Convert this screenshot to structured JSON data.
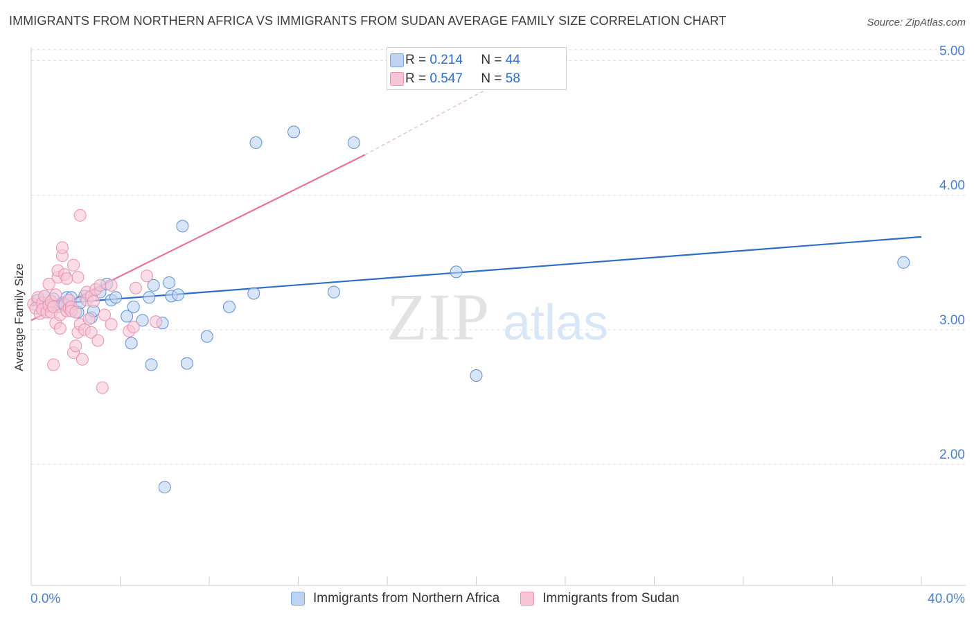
{
  "title": "IMMIGRANTS FROM NORTHERN AFRICA VS IMMIGRANTS FROM SUDAN AVERAGE FAMILY SIZE CORRELATION CHART",
  "source": "Source: ZipAtlas.com",
  "watermark": {
    "part1": "ZIP",
    "part2": "atlas"
  },
  "stats": [
    {
      "r_label": "R =",
      "r_value": "0.214",
      "n_label": "N =",
      "n_value": "44",
      "color": "#bcd3f2"
    },
    {
      "r_label": "R =",
      "r_value": "0.547",
      "n_label": "N =",
      "n_value": "58",
      "color": "#f7c6d6"
    }
  ],
  "legend": [
    {
      "label": "Immigrants from Northern Africa",
      "color": "#bcd3f2"
    },
    {
      "label": "Immigrants from Sudan",
      "color": "#f7c6d6"
    }
  ],
  "chart_data": {
    "type": "scatter",
    "title": "IMMIGRANTS FROM NORTHERN AFRICA VS IMMIGRANTS FROM SUDAN AVERAGE FAMILY SIZE CORRELATION CHART",
    "xlabel": "",
    "ylabel": "Average Family Size",
    "xlim": [
      0,
      40
    ],
    "ylim": [
      1.1,
      5.1
    ],
    "x_tick_labels": [
      "0.0%",
      "40.0%"
    ],
    "y_ticks": [
      2.0,
      3.0,
      4.0,
      5.0
    ],
    "y_tick_labels": [
      "2.00",
      "3.00",
      "4.00",
      "5.00"
    ],
    "series": [
      {
        "name": "Immigrants from Northern Africa",
        "color": "#5b8fd6",
        "fill": "#bcd3f2",
        "trend": {
          "x": [
            0,
            40
          ],
          "y": [
            3.18,
            3.69
          ],
          "color": "#2e6dc8"
        },
        "points": [
          [
            0.3,
            3.22
          ],
          [
            0.5,
            3.18
          ],
          [
            0.6,
            3.25
          ],
          [
            0.8,
            3.19
          ],
          [
            1.0,
            3.23
          ],
          [
            1.2,
            3.17
          ],
          [
            1.4,
            3.2
          ],
          [
            1.5,
            3.18
          ],
          [
            1.6,
            3.24
          ],
          [
            1.8,
            3.24
          ],
          [
            2.1,
            3.13
          ],
          [
            2.4,
            3.25
          ],
          [
            2.7,
            3.09
          ],
          [
            2.8,
            3.14
          ],
          [
            3.1,
            3.28
          ],
          [
            3.4,
            3.34
          ],
          [
            3.6,
            3.22
          ],
          [
            3.8,
            3.24
          ],
          [
            4.3,
            3.1
          ],
          [
            4.5,
            2.9
          ],
          [
            4.6,
            3.17
          ],
          [
            5.0,
            3.07
          ],
          [
            5.3,
            3.24
          ],
          [
            5.4,
            2.74
          ],
          [
            5.5,
            3.33
          ],
          [
            5.9,
            3.05
          ],
          [
            6.0,
            1.83
          ],
          [
            6.2,
            3.35
          ],
          [
            6.3,
            3.25
          ],
          [
            6.6,
            3.26
          ],
          [
            6.8,
            3.77
          ],
          [
            7.0,
            2.75
          ],
          [
            7.9,
            2.95
          ],
          [
            8.9,
            3.17
          ],
          [
            10.0,
            3.27
          ],
          [
            10.1,
            4.39
          ],
          [
            11.8,
            4.47
          ],
          [
            13.6,
            3.28
          ],
          [
            14.5,
            4.39
          ],
          [
            19.1,
            3.43
          ],
          [
            20.0,
            2.66
          ],
          [
            39.2,
            3.5
          ],
          [
            0.9,
            3.21
          ],
          [
            2.2,
            3.2
          ]
        ]
      },
      {
        "name": "Immigrants from Sudan",
        "color": "#ec8fb0",
        "fill": "#f7c6d6",
        "trend": {
          "x": [
            0,
            15
          ],
          "y": [
            3.07,
            4.3
          ],
          "dash_to": [
            21.4,
            4.87
          ],
          "color": "#e8739a"
        },
        "points": [
          [
            0.1,
            3.19
          ],
          [
            0.2,
            3.16
          ],
          [
            0.3,
            3.24
          ],
          [
            0.4,
            3.12
          ],
          [
            0.5,
            3.2
          ],
          [
            0.5,
            3.15
          ],
          [
            0.6,
            3.25
          ],
          [
            0.7,
            3.13
          ],
          [
            0.8,
            3.34
          ],
          [
            0.8,
            3.18
          ],
          [
            0.9,
            3.13
          ],
          [
            0.9,
            3.21
          ],
          [
            1.0,
            3.17
          ],
          [
            1.0,
            2.74
          ],
          [
            1.1,
            3.26
          ],
          [
            1.1,
            3.05
          ],
          [
            1.2,
            3.39
          ],
          [
            1.2,
            3.44
          ],
          [
            1.3,
            3.11
          ],
          [
            1.3,
            3.01
          ],
          [
            1.4,
            3.55
          ],
          [
            1.4,
            3.61
          ],
          [
            1.5,
            3.19
          ],
          [
            1.5,
            3.41
          ],
          [
            1.6,
            3.14
          ],
          [
            1.6,
            3.38
          ],
          [
            1.7,
            3.16
          ],
          [
            1.7,
            3.22
          ],
          [
            1.8,
            3.17
          ],
          [
            1.8,
            3.14
          ],
          [
            1.9,
            3.48
          ],
          [
            1.9,
            2.83
          ],
          [
            2.0,
            3.13
          ],
          [
            2.0,
            2.88
          ],
          [
            2.1,
            3.39
          ],
          [
            2.1,
            2.98
          ],
          [
            2.2,
            3.85
          ],
          [
            2.2,
            3.04
          ],
          [
            2.3,
            2.78
          ],
          [
            2.4,
            3.0
          ],
          [
            2.5,
            3.22
          ],
          [
            2.5,
            3.28
          ],
          [
            2.6,
            3.08
          ],
          [
            2.7,
            2.98
          ],
          [
            2.7,
            3.25
          ],
          [
            2.8,
            3.21
          ],
          [
            2.9,
            3.3
          ],
          [
            3.0,
            2.92
          ],
          [
            3.1,
            3.33
          ],
          [
            3.2,
            2.57
          ],
          [
            3.3,
            3.11
          ],
          [
            3.6,
            3.33
          ],
          [
            3.6,
            3.04
          ],
          [
            4.4,
            2.99
          ],
          [
            4.6,
            3.02
          ],
          [
            4.7,
            3.31
          ],
          [
            5.2,
            3.4
          ],
          [
            5.6,
            3.06
          ]
        ]
      }
    ]
  }
}
